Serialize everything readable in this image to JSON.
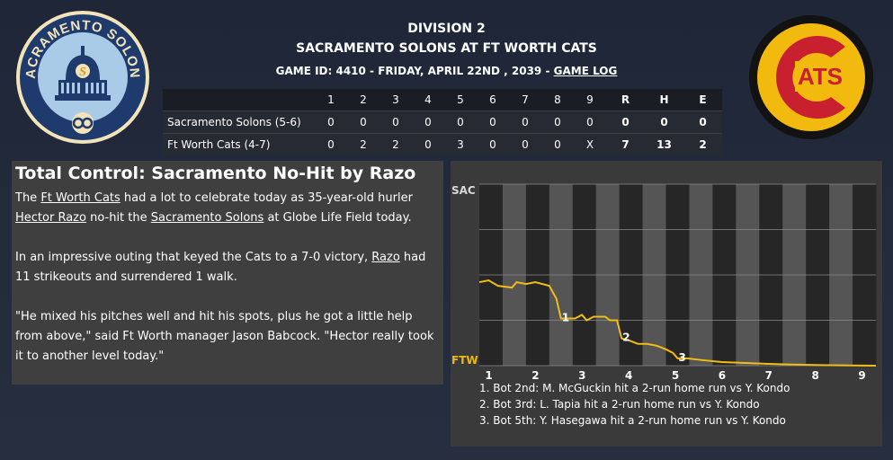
{
  "header": {
    "division": "DIVISION 2",
    "matchup": "SACRAMENTO SOLONS AT FT WORTH CATS",
    "game_info": "GAME ID: 4410 - FRIDAY, APRIL 22ND , 2039 - ",
    "game_log_link": "GAME LOG"
  },
  "logos": {
    "home_logo_text": "CATS",
    "away_logo_text": "SACRAMENTO SOLONS"
  },
  "linescore": {
    "columns": [
      "1",
      "2",
      "3",
      "4",
      "5",
      "6",
      "7",
      "8",
      "9",
      "R",
      "H",
      "E"
    ],
    "rows": [
      {
        "team": "Sacramento Solons (5-6)",
        "cells": [
          "0",
          "0",
          "0",
          "0",
          "0",
          "0",
          "0",
          "0",
          "0",
          "0",
          "0",
          "0"
        ]
      },
      {
        "team": "Ft Worth Cats (4-7)",
        "cells": [
          "0",
          "2",
          "2",
          "0",
          "3",
          "0",
          "0",
          "0",
          "X",
          "7",
          "13",
          "2"
        ]
      }
    ]
  },
  "story": {
    "title": "Total Control: Sacramento No-Hit by Razo",
    "p1_a": "The ",
    "p1_link1": "Ft Worth Cats",
    "p1_b": " had a lot to celebrate today as 35-year-old hurler ",
    "p1_link2": "Hector Razo",
    "p1_c": " no-hit the ",
    "p1_link3": "Sacramento Solons",
    "p1_d": " at Globe Life Field today.",
    "p2_a": "In an impressive outing that keyed the Cats to a 7-0 victory, ",
    "p2_link": "Razo",
    "p2_b": " had 11 strikeouts and surrendered 1 walk.",
    "p3": "\"He mixed his pitches well and hit his spots, plus he got a little help from above,\" said Ft Worth manager Jason Babcock. \"Hector really took it to another level today.\""
  },
  "chart_data": {
    "type": "line",
    "title": "",
    "y_top_label": "SAC",
    "y_bottom_label": "FTW",
    "x_labels": [
      "1",
      "2",
      "3",
      "4",
      "5",
      "6",
      "7",
      "8",
      "9"
    ],
    "ylim": [
      0,
      100
    ],
    "x_range": [
      0.8,
      9.3
    ],
    "colors": {
      "home": "#f0b90b",
      "away": "#ffffff",
      "grid_dark": "#262626",
      "grid_light": "#555555"
    },
    "series": [
      {
        "values": [
          [
            0.8,
            46
          ],
          [
            1.0,
            47
          ],
          [
            1.2,
            44
          ],
          [
            1.5,
            43
          ],
          [
            1.6,
            46
          ],
          [
            1.8,
            45
          ],
          [
            2.0,
            46
          ],
          [
            2.3,
            44
          ],
          [
            2.45,
            37
          ],
          [
            2.55,
            26
          ],
          [
            2.7,
            26
          ],
          [
            2.85,
            26
          ],
          [
            3.0,
            28
          ],
          [
            3.1,
            25
          ],
          [
            3.25,
            27
          ],
          [
            3.5,
            27
          ],
          [
            3.6,
            25
          ],
          [
            3.75,
            25
          ],
          [
            3.85,
            15
          ],
          [
            4.0,
            14
          ],
          [
            4.2,
            12
          ],
          [
            4.4,
            12
          ],
          [
            4.6,
            11
          ],
          [
            4.8,
            9
          ],
          [
            4.95,
            7
          ],
          [
            5.05,
            4
          ],
          [
            5.25,
            4
          ],
          [
            5.6,
            3
          ],
          [
            6.0,
            2
          ],
          [
            6.5,
            1.5
          ],
          [
            7.0,
            1
          ],
          [
            7.5,
            0.6
          ],
          [
            8.0,
            0.4
          ],
          [
            8.5,
            0.2
          ],
          [
            9.3,
            0
          ]
        ]
      }
    ],
    "annotations": [
      {
        "label": "1",
        "x": 2.55,
        "y": 26
      },
      {
        "label": "2",
        "x": 3.85,
        "y": 15
      },
      {
        "label": "3",
        "x": 5.05,
        "y": 4
      }
    ]
  },
  "plays": [
    "1. Bot 2nd: M. McGuckin hit a 2-run home run vs Y. Kondo",
    "2. Bot 3rd: L. Tapia hit a 2-run home run vs Y. Kondo",
    "3. Bot 5th: Y. Hasegawa hit a 2-run home run vs Y. Kondo"
  ]
}
